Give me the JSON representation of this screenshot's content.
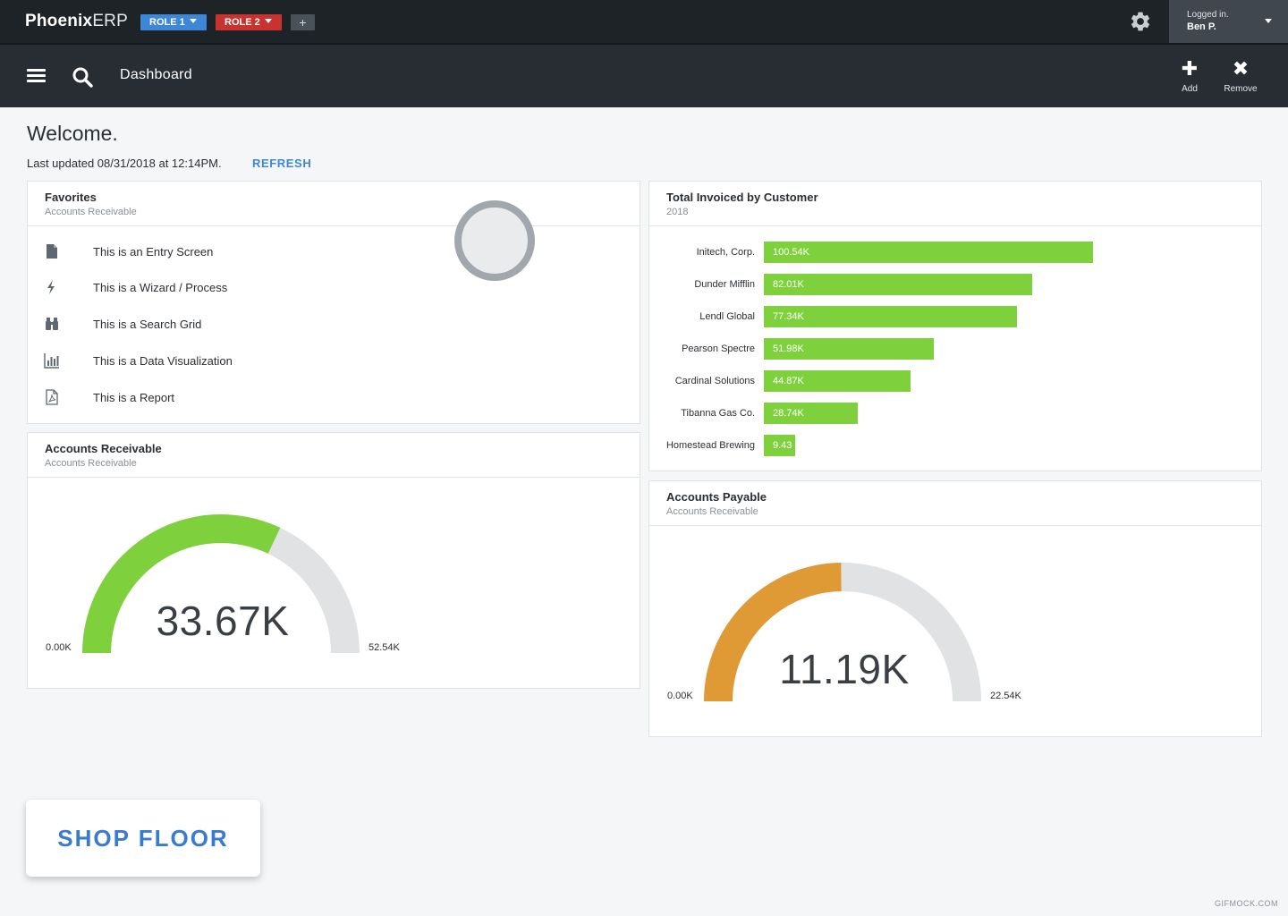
{
  "header": {
    "brand_bold": "Phoenix",
    "brand_light": "ERP",
    "roles": [
      {
        "label": "ROLE 1",
        "color": "#3e86d6"
      },
      {
        "label": "ROLE 2",
        "color": "#c8332f"
      }
    ],
    "add_role_label": "+",
    "user": {
      "status": "Logged in.",
      "name": "Ben P."
    }
  },
  "toolbar": {
    "page_title": "Dashboard",
    "add_label": "Add",
    "remove_label": "Remove"
  },
  "welcome": {
    "title": "Welcome.",
    "updated": "Last updated 08/31/2018 at 12:14PM.",
    "refresh": "REFRESH"
  },
  "favorites": {
    "title": "Favorites",
    "subtitle": "Accounts Receivable",
    "items": [
      {
        "label": "This is an Entry Screen",
        "icon": "file-icon"
      },
      {
        "label": "This is a Wizard / Process",
        "icon": "lightning-icon"
      },
      {
        "label": "This is a Search Grid",
        "icon": "binoculars-icon"
      },
      {
        "label": "This is a Data Visualization",
        "icon": "bar-chart-icon"
      },
      {
        "label": "This is a Report",
        "icon": "pdf-icon"
      }
    ]
  },
  "invoiced": {
    "title": "Total Invoiced by Customer",
    "subtitle": "2018",
    "chart_data": {
      "type": "bar",
      "categories": [
        "Initech, Corp.",
        "Dunder Mifflin",
        "Lendl Global",
        "Pearson Spectre",
        "Cardinal Solutions",
        "Tibanna Gas Co.",
        "Homestead Brewing"
      ],
      "values": [
        100.54,
        82.01,
        77.34,
        51.98,
        44.87,
        28.74,
        9.43
      ],
      "value_labels": [
        "100.54K",
        "82.01K",
        "77.34K",
        "51.98K",
        "44.87K",
        "28.74K",
        "9.43"
      ],
      "color": "#7ed13c"
    }
  },
  "receivable": {
    "title": "Accounts Receivable",
    "subtitle": "Accounts Receivable",
    "gauge": {
      "value": 33.67,
      "value_label": "33.67K",
      "min_label": "0.00K",
      "max_label": "52.54K",
      "min": 0,
      "max": 52.54,
      "color": "#7ed13c"
    }
  },
  "payable": {
    "title": "Accounts Payable",
    "subtitle": "Accounts Receivable",
    "gauge": {
      "value": 11.19,
      "value_label": "11.19K",
      "min_label": "0.00K",
      "max_label": "22.54K",
      "min": 0,
      "max": 22.54,
      "color": "#e09a35"
    }
  },
  "shop_floor": "SHOP FLOOR",
  "watermark": "GIFMOCK.COM"
}
